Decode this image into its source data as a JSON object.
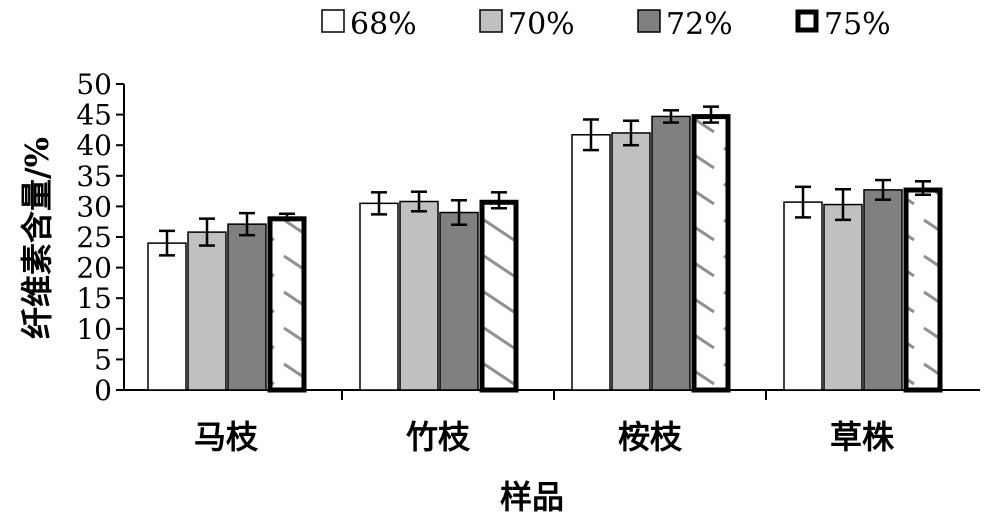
{
  "chart_data": {
    "type": "bar",
    "title": "",
    "xlabel": "样品",
    "ylabel": "纤维素含量/%",
    "ylim": [
      0,
      50
    ],
    "yticks": [
      0,
      5,
      10,
      15,
      20,
      25,
      30,
      35,
      40,
      45,
      50
    ],
    "ytick_labels": [
      "0",
      "5",
      "10",
      "15",
      "20",
      "25",
      "30",
      "35",
      "40",
      "45",
      "50"
    ],
    "categories": [
      "马枝",
      "竹枝",
      "桉枝",
      "草株"
    ],
    "series": [
      {
        "name": "68%",
        "values": [
          24.0,
          30.5,
          41.7,
          30.7
        ],
        "errors": [
          2.0,
          1.8,
          2.5,
          2.5
        ],
        "fill": "#ffffff",
        "style": "plain"
      },
      {
        "name": "70%",
        "values": [
          25.8,
          30.8,
          42.0,
          30.3
        ],
        "errors": [
          2.2,
          1.6,
          2.0,
          2.5
        ],
        "fill": "#c0c0c0",
        "style": "plain"
      },
      {
        "name": "72%",
        "values": [
          27.1,
          29.0,
          44.7,
          32.7
        ],
        "errors": [
          1.8,
          2.0,
          1.0,
          1.6
        ],
        "fill": "#808080",
        "style": "plain"
      },
      {
        "name": "75%",
        "values": [
          28.3,
          31.0,
          45.0,
          33.0
        ],
        "errors": [
          0.5,
          1.3,
          1.3,
          1.1
        ],
        "fill": "#ffffff",
        "style": "hatched-bold"
      }
    ],
    "grid": false,
    "legend_position": "top"
  }
}
